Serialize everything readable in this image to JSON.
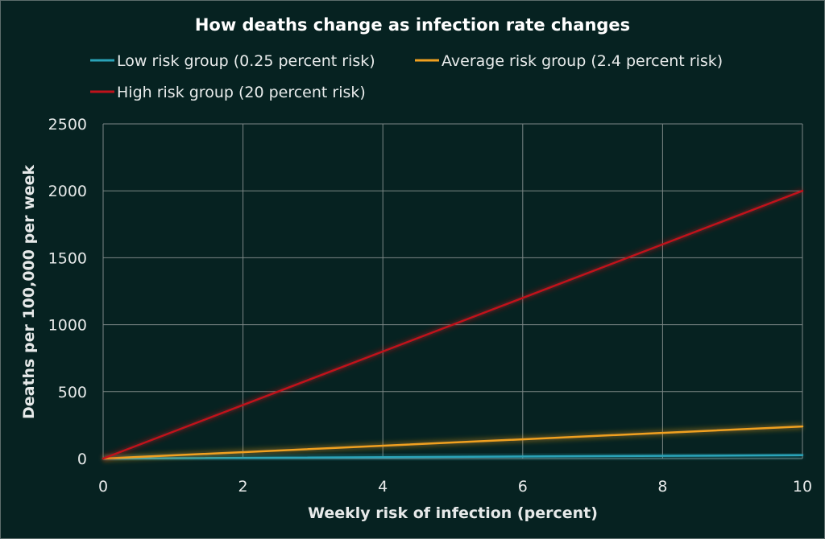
{
  "chart_data": {
    "type": "line",
    "title": "How deaths change as infection rate changes",
    "xlabel": "Weekly risk of infection (percent)",
    "ylabel": "Deaths per 100,000 per week",
    "xlim": [
      0,
      10
    ],
    "ylim": [
      0,
      2500
    ],
    "x_ticks": [
      0,
      2,
      4,
      6,
      8,
      10
    ],
    "y_ticks": [
      0,
      500,
      1000,
      1500,
      2000,
      2500
    ],
    "grid": true,
    "legend_position": "top",
    "x": [
      0,
      10
    ],
    "series": [
      {
        "name": "Low risk group (0.25 percent risk)",
        "values": [
          0,
          25
        ],
        "color": "#2aa3b8"
      },
      {
        "name": "Average risk group (2.4 percent risk)",
        "values": [
          0,
          240
        ],
        "color": "#f0a020"
      },
      {
        "name": "High risk group (20 percent risk)",
        "values": [
          0,
          2000
        ],
        "color": "#c0121b"
      }
    ]
  }
}
